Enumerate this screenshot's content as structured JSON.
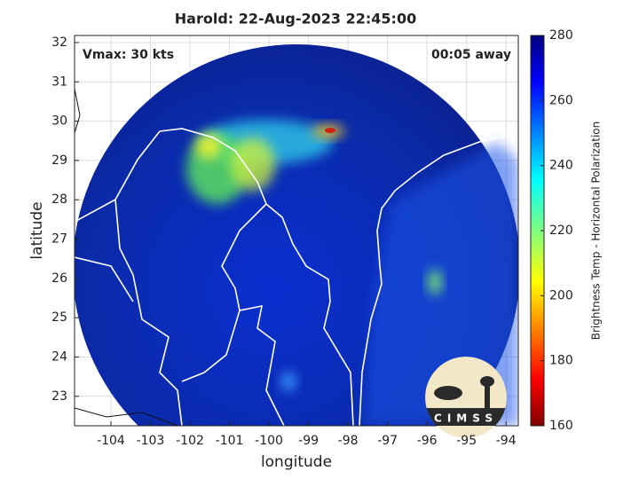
{
  "chart_data": {
    "type": "map",
    "title": "Harold: 22-Aug-2023 22:45:00",
    "annotations": [
      "Vmax: 30 kts",
      "00:05 away"
    ],
    "xlabel": "longitude",
    "ylabel": "latitude",
    "xlim": [
      -104.92,
      -93.69
    ],
    "xticks": [
      -104,
      -103,
      -102,
      -101,
      -100,
      -99,
      -98,
      -97,
      -96,
      -95,
      -94
    ],
    "ylim": [
      22.25,
      32.18
    ],
    "yticks": [
      23,
      24,
      25,
      26,
      27,
      28,
      29,
      30,
      31,
      32
    ],
    "grid": true,
    "colorbar": {
      "label": "Brightness Temp - Horizontal Polarization",
      "clim": [
        160,
        280
      ],
      "ticks": [
        160,
        180,
        200,
        220,
        240,
        260,
        280
      ]
    },
    "logo_text": "CIMSS"
  }
}
